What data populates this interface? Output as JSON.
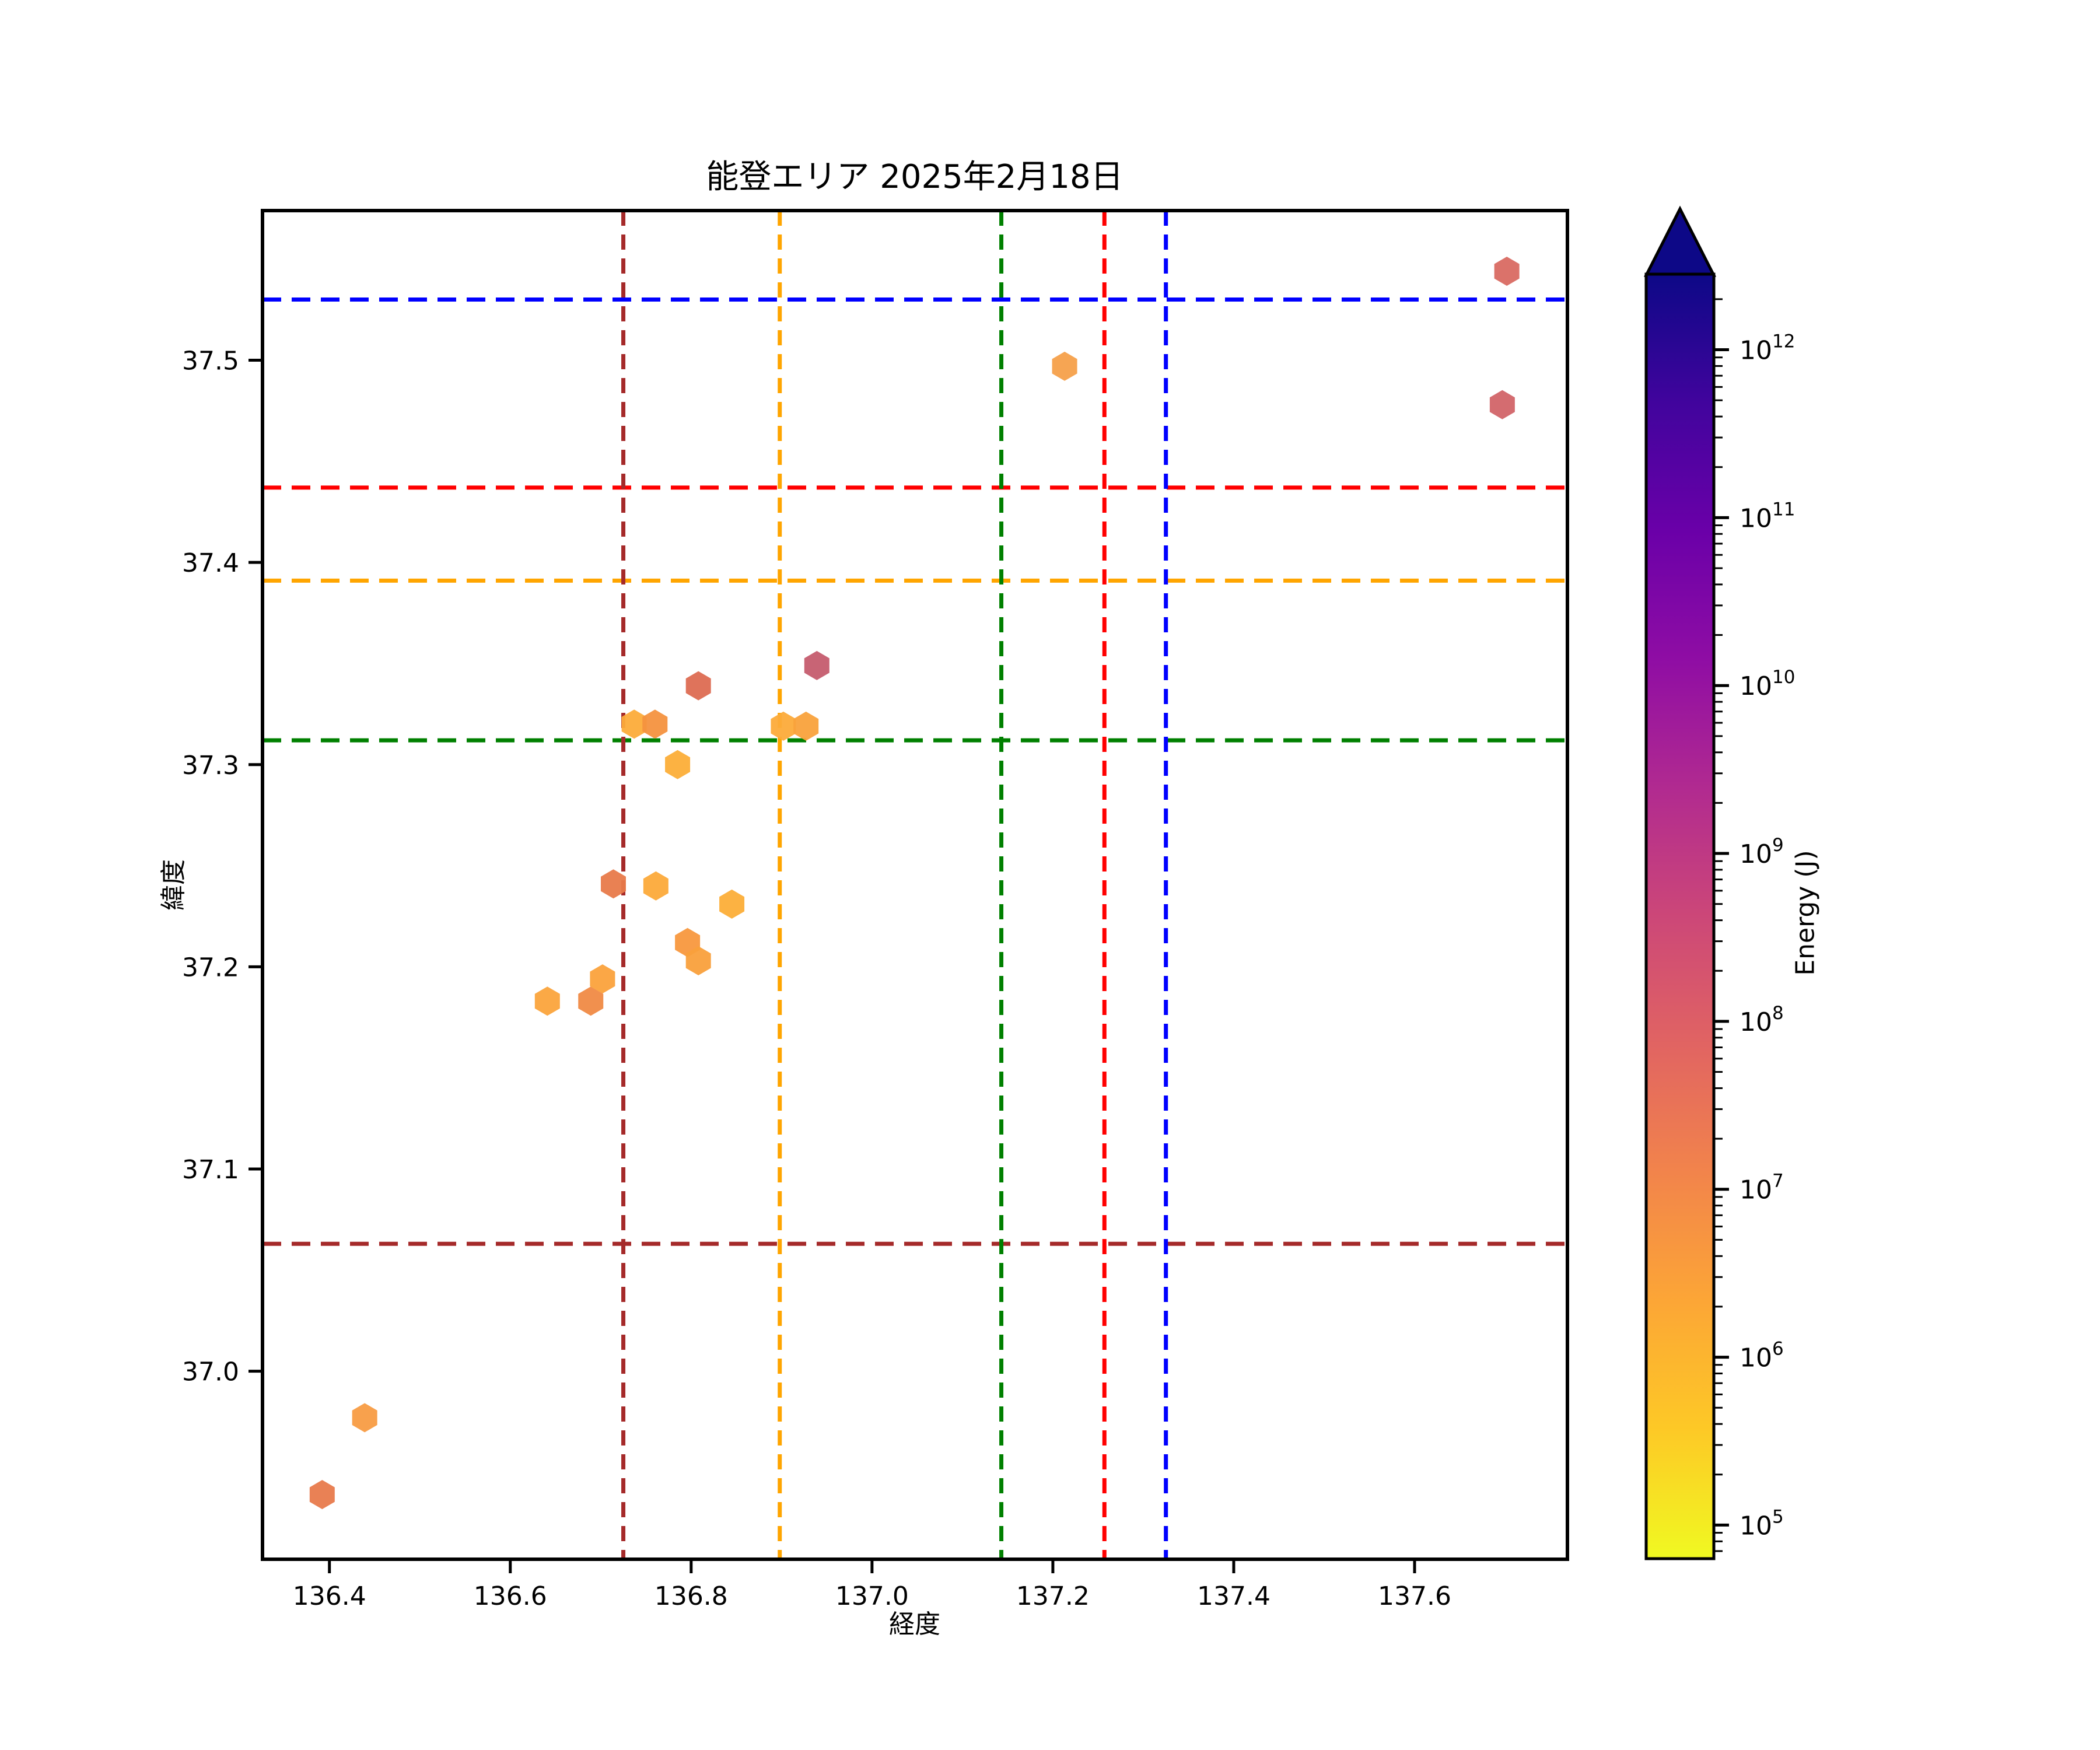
{
  "chart_data": {
    "type": "scatter",
    "title": "能登エリア 2025年2月18日",
    "xlabel": "経度",
    "ylabel": "緯度",
    "marker": "hexagon",
    "grid": false,
    "xlim": [
      136.326,
      137.769
    ],
    "ylim": [
      36.907,
      37.574
    ],
    "xticks": [
      136.4,
      136.6,
      136.8,
      137.0,
      137.2,
      137.4,
      137.6
    ],
    "xtick_labels": [
      "136.4",
      "136.6",
      "136.8",
      "137.0",
      "137.2",
      "137.4",
      "137.6"
    ],
    "yticks": [
      37.0,
      37.1,
      37.2,
      37.3,
      37.4,
      37.5
    ],
    "ytick_labels": [
      "37.0",
      "37.1",
      "37.2",
      "37.3",
      "37.4",
      "37.5"
    ],
    "points": [
      {
        "lon": 136.392,
        "lat": 36.939,
        "color": "#e87a4c",
        "energy_j_approx": "1e7"
      },
      {
        "lon": 136.439,
        "lat": 36.977,
        "color": "#f89c43",
        "energy_j_approx": "4e6"
      },
      {
        "lon": 136.641,
        "lat": 37.183,
        "color": "#fba43c",
        "energy_j_approx": "2e6"
      },
      {
        "lon": 136.689,
        "lat": 37.183,
        "color": "#f08a45",
        "energy_j_approx": "7e6"
      },
      {
        "lon": 136.702,
        "lat": 37.194,
        "color": "#fba23c",
        "energy_j_approx": "2.5e6"
      },
      {
        "lon": 136.714,
        "lat": 37.241,
        "color": "#e87a4a",
        "energy_j_approx": "1.2e7"
      },
      {
        "lon": 136.761,
        "lat": 37.24,
        "color": "#fcaa3a",
        "energy_j_approx": "2e6"
      },
      {
        "lon": 136.737,
        "lat": 37.32,
        "color": "#fcac3a",
        "energy_j_approx": "2e6"
      },
      {
        "lon": 136.76,
        "lat": 37.32,
        "color": "#f4923f",
        "energy_j_approx": "6e6"
      },
      {
        "lon": 136.785,
        "lat": 37.3,
        "color": "#fcae38",
        "energy_j_approx": "1.8e6"
      },
      {
        "lon": 136.796,
        "lat": 37.212,
        "color": "#f8983e",
        "energy_j_approx": "4.5e6"
      },
      {
        "lon": 136.808,
        "lat": 37.203,
        "color": "#f9a03c",
        "energy_j_approx": "3e6"
      },
      {
        "lon": 136.845,
        "lat": 37.231,
        "color": "#fcae38",
        "energy_j_approx": "1.8e6"
      },
      {
        "lon": 136.808,
        "lat": 37.339,
        "color": "#dd6b52",
        "energy_j_approx": "4e7"
      },
      {
        "lon": 136.902,
        "lat": 37.319,
        "color": "#fcab3a",
        "energy_j_approx": "2e6"
      },
      {
        "lon": 136.927,
        "lat": 37.319,
        "color": "#f9a23c",
        "energy_j_approx": "3e6"
      },
      {
        "lon": 136.939,
        "lat": 37.349,
        "color": "#c55c6e",
        "energy_j_approx": "3e8"
      },
      {
        "lon": 137.213,
        "lat": 37.497,
        "color": "#f5a04a",
        "energy_j_approx": "3e6"
      },
      {
        "lon": 137.697,
        "lat": 37.478,
        "color": "#d26468",
        "energy_j_approx": "1.5e8"
      },
      {
        "lon": 137.702,
        "lat": 37.544,
        "color": "#d96a62",
        "energy_j_approx": "1e8"
      }
    ],
    "gridlines": {
      "vertical": [
        {
          "lon": 136.725,
          "color": "#a52a2a"
        },
        {
          "lon": 136.898,
          "color": "#ffa500"
        },
        {
          "lon": 137.143,
          "color": "#008000"
        },
        {
          "lon": 137.257,
          "color": "#ff0000"
        },
        {
          "lon": 137.325,
          "color": "#0000ff"
        }
      ],
      "horizontal": [
        {
          "lat": 37.53,
          "color": "#0000ff"
        },
        {
          "lat": 37.437,
          "color": "#ff0000"
        },
        {
          "lat": 37.391,
          "color": "#ffa500"
        },
        {
          "lat": 37.312,
          "color": "#008000"
        },
        {
          "lat": 37.063,
          "color": "#a52a2a"
        }
      ]
    },
    "colorbar": {
      "label": "Energy (J)",
      "scale": "log",
      "extend": "max",
      "colormap": "plasma_r",
      "vmin_exp": 4.8,
      "vmax_exp": 12.45,
      "tick_exponents": [
        5,
        6,
        7,
        8,
        9,
        10,
        11,
        12
      ],
      "tick_base": "10",
      "gradient_top_to_bottom": [
        "#0d0887",
        "#41049d",
        "#6a00a8",
        "#8f0da4",
        "#b12a90",
        "#cc4778",
        "#e16462",
        "#f2844b",
        "#fca636",
        "#fdc926",
        "#f0f921"
      ]
    }
  }
}
